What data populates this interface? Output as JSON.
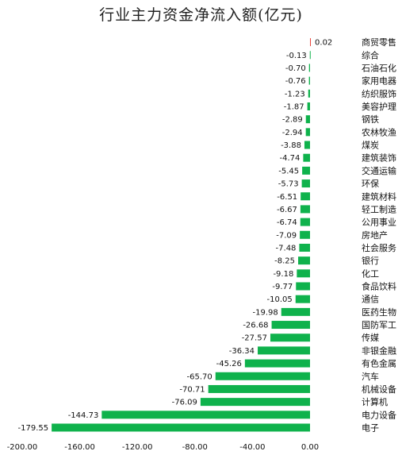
{
  "chart_data": {
    "type": "bar",
    "orientation": "horizontal",
    "title": "行业主力资金净流入额(亿元)",
    "categories": [
      "商贸零售",
      "综合",
      "石油石化",
      "家用电器",
      "纺织服饰",
      "美容护理",
      "钢铁",
      "农林牧渔",
      "煤炭",
      "建筑装饰",
      "交通运输",
      "环保",
      "建筑材料",
      "轻工制造",
      "公用事业",
      "房地产",
      "社会服务",
      "银行",
      "化工",
      "食品饮料",
      "通信",
      "医药生物",
      "国防军工",
      "传媒",
      "非银金融",
      "有色金属",
      "汽车",
      "机械设备",
      "计算机",
      "电力设备",
      "电子"
    ],
    "values": [
      0.02,
      -0.13,
      -0.7,
      -0.76,
      -1.23,
      -1.87,
      -2.89,
      -2.94,
      -3.88,
      -4.74,
      -5.45,
      -5.73,
      -6.51,
      -6.67,
      -6.74,
      -7.09,
      -7.48,
      -8.25,
      -9.18,
      -9.77,
      -10.05,
      -19.98,
      -26.68,
      -27.57,
      -36.34,
      -45.26,
      -65.7,
      -70.71,
      -76.09,
      -144.73,
      -179.55
    ],
    "value_labels": [
      "0.02",
      "-0.13",
      "-0.70",
      "-0.76",
      "-1.23",
      "-1.87",
      "-2.89",
      "-2.94",
      "-3.88",
      "-4.74",
      "-5.45",
      "-5.73",
      "-6.51",
      "-6.67",
      "-6.74",
      "-7.09",
      "-7.48",
      "-8.25",
      "-9.18",
      "-9.77",
      "-10.05",
      "-19.98",
      "-26.68",
      "-27.57",
      "-36.34",
      "-45.26",
      "-65.70",
      "-70.71",
      "-76.09",
      "-144.73",
      "-179.55"
    ],
    "xlim": [
      -200,
      0
    ],
    "x_ticks": [
      "-200.00",
      "-160.00",
      "-120.00",
      "-80.00",
      "-40.00",
      "0.00"
    ],
    "x_tick_values": [
      -200,
      -160,
      -120,
      -80,
      -40,
      0
    ],
    "grid": false,
    "colors": {
      "positive": "#e8433a",
      "negative": "#0fb24c"
    }
  }
}
